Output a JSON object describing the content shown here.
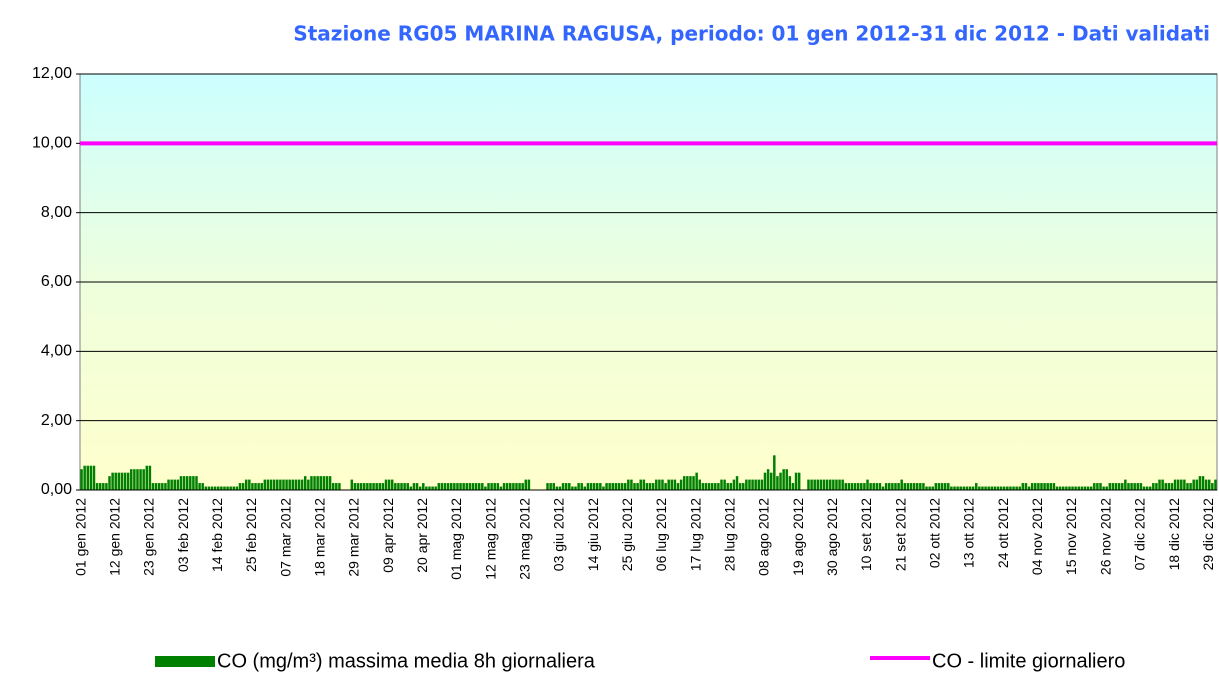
{
  "chart_data": {
    "type": "bar",
    "title": "Stazione RG05 MARINA RAGUSA, periodo: 01 gen 2012-31 dic 2012 - Dati validati",
    "ylim": [
      0,
      12
    ],
    "yticks": [
      {
        "value": 0,
        "label": "0,00"
      },
      {
        "value": 2,
        "label": "2,00"
      },
      {
        "value": 4,
        "label": "4,00"
      },
      {
        "value": 6,
        "label": "6,00"
      },
      {
        "value": 8,
        "label": "8,00"
      },
      {
        "value": 10,
        "label": "10,00"
      },
      {
        "value": 12,
        "label": "12,00"
      }
    ],
    "grid": true,
    "categories": [
      "01 gen 2012",
      null,
      null,
      null,
      null,
      null,
      null,
      null,
      null,
      null,
      null,
      "12 gen 2012",
      null,
      null,
      null,
      null,
      null,
      null,
      null,
      null,
      null,
      null,
      "23 gen 2012",
      null,
      null,
      null,
      null,
      null,
      null,
      null,
      null,
      null,
      null,
      "03 feb 2012",
      null,
      null,
      null,
      null,
      null,
      null,
      null,
      null,
      null,
      null,
      "14 feb 2012",
      null,
      null,
      null,
      null,
      null,
      null,
      null,
      null,
      null,
      null,
      "25 feb 2012",
      null,
      null,
      null,
      null,
      null,
      null,
      null,
      null,
      null,
      null,
      "07 mar 2012",
      null,
      null,
      null,
      null,
      null,
      null,
      null,
      null,
      null,
      null,
      "18 mar 2012",
      null,
      null,
      null,
      null,
      null,
      null,
      null,
      null,
      null,
      null,
      "29 mar 2012",
      null,
      null,
      null,
      null,
      null,
      null,
      null,
      null,
      null,
      null,
      "09 apr 2012",
      null,
      null,
      null,
      null,
      null,
      null,
      null,
      null,
      null,
      null,
      "20 apr 2012",
      null,
      null,
      null,
      null,
      null,
      null,
      null,
      null,
      null,
      null,
      "01 mag 2012",
      null,
      null,
      null,
      null,
      null,
      null,
      null,
      null,
      null,
      null,
      "12 mag 2012",
      null,
      null,
      null,
      null,
      null,
      null,
      null,
      null,
      null,
      null,
      "23 mag 2012",
      null,
      null,
      null,
      null,
      null,
      null,
      null,
      null,
      null,
      null,
      "03 giu 2012",
      null,
      null,
      null,
      null,
      null,
      null,
      null,
      null,
      null,
      null,
      "14 giu 2012",
      null,
      null,
      null,
      null,
      null,
      null,
      null,
      null,
      null,
      null,
      "25 giu 2012",
      null,
      null,
      null,
      null,
      null,
      null,
      null,
      null,
      null,
      null,
      "06 lug 2012",
      null,
      null,
      null,
      null,
      null,
      null,
      null,
      null,
      null,
      null,
      "17 lug 2012",
      null,
      null,
      null,
      null,
      null,
      null,
      null,
      null,
      null,
      null,
      "28 lug 2012",
      null,
      null,
      null,
      null,
      null,
      null,
      null,
      null,
      null,
      null,
      "08 ago 2012",
      null,
      null,
      null,
      null,
      null,
      null,
      null,
      null,
      null,
      null,
      "19 ago 2012",
      null,
      null,
      null,
      null,
      null,
      null,
      null,
      null,
      null,
      null,
      "30 ago 2012",
      null,
      null,
      null,
      null,
      null,
      null,
      null,
      null,
      null,
      null,
      "10 set 2012",
      null,
      null,
      null,
      null,
      null,
      null,
      null,
      null,
      null,
      null,
      "21 set 2012",
      null,
      null,
      null,
      null,
      null,
      null,
      null,
      null,
      null,
      null,
      "02 ott 2012",
      null,
      null,
      null,
      null,
      null,
      null,
      null,
      null,
      null,
      null,
      "13 ott 2012",
      null,
      null,
      null,
      null,
      null,
      null,
      null,
      null,
      null,
      null,
      "24 ott 2012",
      null,
      null,
      null,
      null,
      null,
      null,
      null,
      null,
      null,
      null,
      "04 nov 2012",
      null,
      null,
      null,
      null,
      null,
      null,
      null,
      null,
      null,
      null,
      "15 nov 2012",
      null,
      null,
      null,
      null,
      null,
      null,
      null,
      null,
      null,
      null,
      "26 nov 2012",
      null,
      null,
      null,
      null,
      null,
      null,
      null,
      null,
      null,
      null,
      "07 dic 2012",
      null,
      null,
      null,
      null,
      null,
      null,
      null,
      null,
      null,
      null,
      "18 dic 2012",
      null,
      null,
      null,
      null,
      null,
      null,
      null,
      null,
      null,
      null,
      "29 dic 2012",
      null,
      null
    ],
    "series": [
      {
        "name": "CO (mg/m³) massima media 8h giornaliera",
        "color": "#008000",
        "values": [
          0.6,
          0.7,
          0.7,
          0.7,
          0.7,
          0.2,
          0.2,
          0.2,
          0.2,
          0.4,
          0.5,
          0.5,
          0.5,
          0.5,
          0.5,
          0.5,
          0.6,
          0.6,
          0.6,
          0.6,
          0.6,
          0.7,
          0.7,
          0.2,
          0.2,
          0.2,
          0.2,
          0.2,
          0.3,
          0.3,
          0.3,
          0.3,
          0.4,
          0.4,
          0.4,
          0.4,
          0.4,
          0.4,
          0.2,
          0.2,
          0.1,
          0.1,
          0.1,
          0.1,
          0.1,
          0.1,
          0.1,
          0.1,
          0.1,
          0.1,
          0.1,
          0.2,
          0.2,
          0.3,
          0.3,
          0.2,
          0.2,
          0.2,
          0.2,
          0.3,
          0.3,
          0.3,
          0.3,
          0.3,
          0.3,
          0.3,
          0.3,
          0.3,
          0.3,
          0.3,
          0.3,
          0.3,
          0.4,
          0.3,
          0.4,
          0.4,
          0.4,
          0.4,
          0.4,
          0.4,
          0.4,
          0.2,
          0.2,
          0.2,
          null,
          null,
          null,
          0.3,
          0.2,
          0.2,
          0.2,
          0.2,
          0.2,
          0.2,
          0.2,
          0.2,
          0.2,
          0.2,
          0.3,
          0.3,
          0.3,
          0.2,
          0.2,
          0.2,
          0.2,
          0.2,
          0.1,
          0.2,
          0.2,
          0.1,
          0.2,
          0.1,
          0.1,
          0.1,
          0.1,
          0.2,
          0.2,
          0.2,
          0.2,
          0.2,
          0.2,
          0.2,
          0.2,
          0.2,
          0.2,
          0.2,
          0.2,
          0.2,
          0.2,
          0.2,
          0.1,
          0.2,
          0.2,
          0.2,
          0.2,
          0.1,
          0.2,
          0.2,
          0.2,
          0.2,
          0.2,
          0.2,
          0.2,
          0.3,
          0.3,
          null,
          null,
          null,
          null,
          null,
          0.2,
          0.2,
          0.2,
          0.1,
          0.1,
          0.2,
          0.2,
          0.2,
          0.1,
          0.1,
          0.2,
          0.2,
          0.1,
          0.2,
          0.2,
          0.2,
          0.2,
          0.2,
          0.1,
          0.2,
          0.2,
          0.2,
          0.2,
          0.2,
          0.2,
          0.2,
          0.3,
          0.3,
          0.2,
          0.2,
          0.3,
          0.3,
          0.2,
          0.2,
          0.2,
          0.3,
          0.3,
          0.3,
          0.2,
          0.3,
          0.3,
          0.3,
          0.2,
          0.3,
          0.4,
          0.4,
          0.4,
          0.4,
          0.5,
          0.3,
          0.2,
          0.2,
          0.2,
          0.2,
          0.2,
          0.2,
          0.3,
          0.3,
          0.2,
          0.2,
          0.3,
          0.4,
          0.2,
          0.2,
          0.3,
          0.3,
          0.3,
          0.3,
          0.3,
          0.3,
          0.5,
          0.6,
          0.5,
          1.0,
          0.4,
          0.5,
          0.6,
          0.6,
          0.4,
          0.2,
          0.5,
          0.5,
          null,
          null,
          0.3,
          0.3,
          0.3,
          0.3,
          0.3,
          0.3,
          0.3,
          0.3,
          0.3,
          0.3,
          0.3,
          0.3,
          0.2,
          0.2,
          0.2,
          0.2,
          0.2,
          0.2,
          0.2,
          0.3,
          0.2,
          0.2,
          0.2,
          0.2,
          0.1,
          0.2,
          0.2,
          0.2,
          0.2,
          0.2,
          0.3,
          0.2,
          0.2,
          0.2,
          0.2,
          0.2,
          0.2,
          0.2,
          0.1,
          0.1,
          0.1,
          0.2,
          0.2,
          0.2,
          0.2,
          0.2,
          0.1,
          0.1,
          0.1,
          0.1,
          0.1,
          0.1,
          0.1,
          0.1,
          0.2,
          0.1,
          0.1,
          0.1,
          0.1,
          0.1,
          0.1,
          0.1,
          0.1,
          0.1,
          0.1,
          0.1,
          0.1,
          0.1,
          0.1,
          0.2,
          0.2,
          0.1,
          0.2,
          0.2,
          0.2,
          0.2,
          0.2,
          0.2,
          0.2,
          0.2,
          0.1,
          0.1,
          0.1,
          0.1,
          0.1,
          0.1,
          0.1,
          0.1,
          0.1,
          0.1,
          0.1,
          0.1,
          0.2,
          0.2,
          0.2,
          0.1,
          0.1,
          0.2,
          0.2,
          0.2,
          0.2,
          0.2,
          0.3,
          0.2,
          0.2,
          0.2,
          0.2,
          0.2,
          0.1,
          0.1,
          0.1,
          0.2,
          0.2,
          0.3,
          0.3,
          0.2,
          0.2,
          0.2,
          0.3,
          0.3,
          0.3,
          0.3,
          0.2,
          0.2,
          0.3,
          0.3,
          0.4,
          0.4,
          0.3,
          0.3,
          0.2,
          0.3
        ]
      }
    ],
    "limit": {
      "name": "CO - limite giornaliero",
      "value": 10,
      "color": "#ff00ff"
    }
  }
}
